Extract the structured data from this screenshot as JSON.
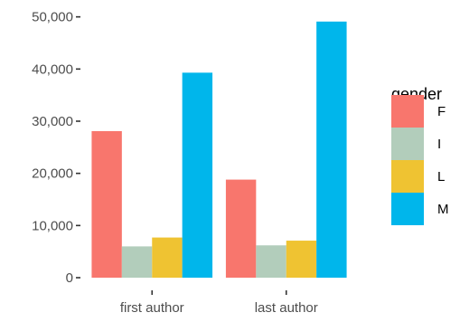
{
  "chart_data": {
    "type": "bar",
    "categories": [
      "first author",
      "last author"
    ],
    "series": [
      {
        "name": "F",
        "color": "#F8766D",
        "values": [
          28100,
          18800
        ]
      },
      {
        "name": "I",
        "color": "#B2CDBB",
        "values": [
          6000,
          6200
        ]
      },
      {
        "name": "L",
        "color": "#EFC332",
        "values": [
          7700,
          7100
        ]
      },
      {
        "name": "M",
        "color": "#00B6EB",
        "values": [
          39300,
          49100
        ]
      }
    ],
    "title": "",
    "xlabel": "",
    "ylabel": "",
    "ylim": [
      0,
      51500
    ],
    "yticks": [
      0,
      10000,
      20000,
      30000,
      40000,
      50000
    ],
    "ytick_labels": [
      "0",
      "10,000",
      "20,000",
      "30,000",
      "40,000",
      "50,000"
    ],
    "grid": false,
    "legend": {
      "title": "gender",
      "position": "right"
    }
  }
}
